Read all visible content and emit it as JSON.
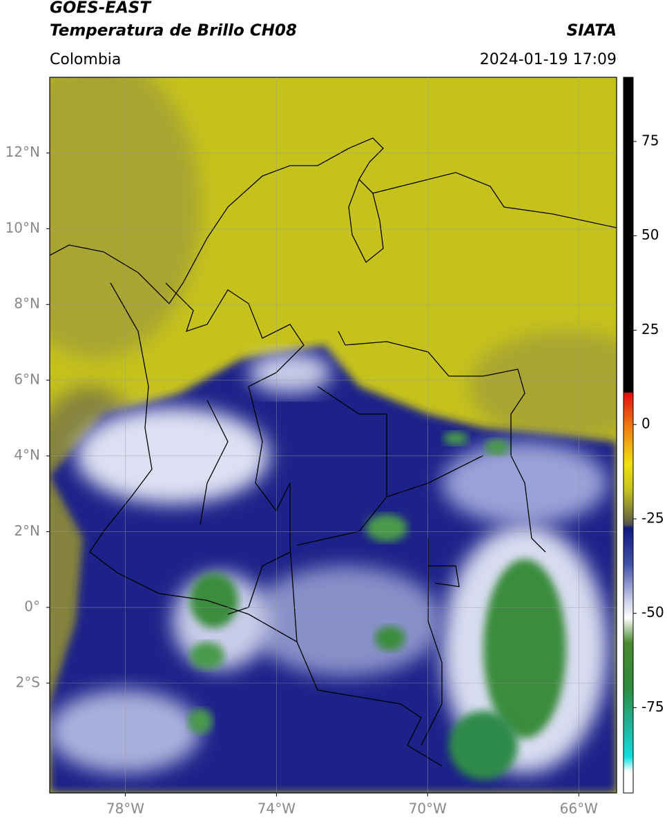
{
  "header": {
    "title": "GOES-EAST",
    "subtitle": "Temperatura de Brillo CH08",
    "region": "Colombia",
    "source": "SIATA",
    "datetime": "2024-01-19 17:09"
  },
  "map": {
    "xlim": [
      -80,
      -65
    ],
    "ylim": [
      -4.9,
      14
    ],
    "xticks": [
      {
        "value": -78,
        "label": "78°W"
      },
      {
        "value": -74,
        "label": "74°W"
      },
      {
        "value": -70,
        "label": "70°W"
      },
      {
        "value": -66,
        "label": "66°W"
      }
    ],
    "yticks": [
      {
        "value": 12,
        "label": "12°N"
      },
      {
        "value": 10,
        "label": "10°N"
      },
      {
        "value": 8,
        "label": "8°N"
      },
      {
        "value": 6,
        "label": "6°N"
      },
      {
        "value": 4,
        "label": "4°N"
      },
      {
        "value": 2,
        "label": "2°N"
      },
      {
        "value": 0,
        "label": "0°"
      },
      {
        "value": -2,
        "label": "2°S"
      }
    ],
    "grid": true
  },
  "colorbar": {
    "lim": [
      -97.6,
      92
    ],
    "ticks": [
      75,
      50,
      25,
      0,
      -25,
      -50,
      -75
    ]
  }
}
